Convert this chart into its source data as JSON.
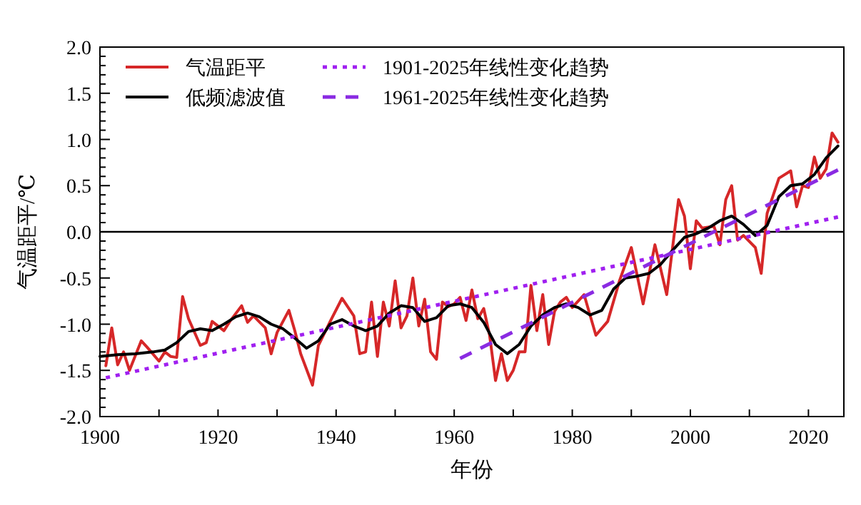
{
  "chart_data": {
    "type": "line",
    "xlabel": "年份",
    "ylabel": "气温距平/℃",
    "legend": "top left",
    "grid": false,
    "xlim": [
      1900,
      2026
    ],
    "ylim": [
      -2,
      2
    ],
    "xticks": [
      1900,
      {
        "value": 1910,
        "label": null
      },
      1920,
      {
        "value": 1930,
        "label": null
      },
      1940,
      {
        "value": 1950,
        "label": null
      },
      1960,
      {
        "value": 1970,
        "label": null
      },
      1980,
      {
        "value": 1990,
        "label": null
      },
      2000,
      {
        "value": 2010,
        "label": null
      },
      2020
    ],
    "yticks": [
      {
        "value": -2,
        "label": "-2.0"
      },
      {
        "value": -1.5,
        "label": "-1.5"
      },
      {
        "value": -1,
        "label": "-1.0"
      },
      {
        "value": -0.5,
        "label": "-0.5"
      },
      {
        "value": 0,
        "label": "0.0"
      },
      {
        "value": 0.5,
        "label": "0.5"
      },
      {
        "value": 1,
        "label": "1.0"
      },
      {
        "value": 1.5,
        "label": "1.5"
      },
      {
        "value": 2,
        "label": "2.0"
      }
    ],
    "ref_lines": [
      {
        "axis": "y",
        "value": 0,
        "color": "#000000",
        "line_style": "solid"
      }
    ],
    "series": [
      {
        "name": "气温距平",
        "type": "line",
        "line_style": "solid",
        "color": "#d62728",
        "x": [
          1901,
          1902,
          1903,
          1904,
          1905,
          1907,
          1908,
          1910,
          1911,
          1912,
          1913,
          1914,
          1915,
          1917,
          1918,
          1919,
          1921,
          1922,
          1924,
          1925,
          1926,
          1928,
          1929,
          1930,
          1932,
          1933,
          1934,
          1936,
          1937,
          1939,
          1941,
          1943,
          1944,
          1945,
          1946,
          1947,
          1948,
          1949,
          1950,
          1951,
          1952,
          1953,
          1954,
          1955,
          1956,
          1957,
          1958,
          1959,
          1960,
          1961,
          1962,
          1963,
          1964,
          1965,
          1966,
          1967,
          1968,
          1969,
          1970,
          1971,
          1972,
          1973,
          1974,
          1975,
          1976,
          1977,
          1978,
          1979,
          1980,
          1982,
          1984,
          1986,
          1988,
          1990,
          1992,
          1994,
          1996,
          1998,
          1999,
          2000,
          2001,
          2002,
          2004,
          2005,
          2006,
          2007,
          2008,
          2009,
          2011,
          2012,
          2013,
          2015,
          2017,
          2018,
          2019,
          2020,
          2021,
          2022,
          2023,
          2024,
          2025
        ],
        "values": [
          -1.45,
          -1.04,
          -1.44,
          -1.3,
          -1.5,
          -1.18,
          -1.25,
          -1.4,
          -1.3,
          -1.35,
          -1.36,
          -0.7,
          -0.94,
          -1.23,
          -1.2,
          -0.97,
          -1.07,
          -0.97,
          -0.8,
          -0.98,
          -0.91,
          -1.04,
          -1.32,
          -1.09,
          -0.85,
          -1.07,
          -1.32,
          -1.66,
          -1.23,
          -0.97,
          -0.72,
          -0.91,
          -1.32,
          -1.3,
          -0.76,
          -1.35,
          -0.76,
          -1.02,
          -0.53,
          -1.04,
          -0.91,
          -0.5,
          -1.02,
          -0.73,
          -1.3,
          -1.38,
          -0.76,
          -0.81,
          -0.78,
          -0.71,
          -0.96,
          -0.63,
          -0.94,
          -0.83,
          -1.12,
          -1.61,
          -1.32,
          -1.61,
          -1.5,
          -1.3,
          -1.3,
          -0.58,
          -1.07,
          -0.68,
          -1.22,
          -0.86,
          -0.76,
          -0.71,
          -0.82,
          -0.68,
          -1.12,
          -0.97,
          -0.53,
          -0.17,
          -0.78,
          -0.14,
          -0.68,
          0.35,
          0.17,
          -0.4,
          0.12,
          0.04,
          0.06,
          -0.14,
          0.35,
          0.5,
          -0.09,
          -0.04,
          -0.17,
          -0.45,
          0.2,
          0.58,
          0.66,
          0.27,
          0.5,
          0.48,
          0.81,
          0.58,
          0.68,
          1.07,
          0.97
        ]
      },
      {
        "name": "低频滤波值",
        "type": "line",
        "line_style": "solid",
        "color": "#000000",
        "x": [
          1900,
          1903,
          1906,
          1909,
          1911,
          1913,
          1915,
          1917,
          1919,
          1921,
          1923,
          1925,
          1927,
          1929,
          1931,
          1933,
          1935,
          1937,
          1939,
          1941,
          1943,
          1945,
          1947,
          1949,
          1951,
          1953,
          1955,
          1957,
          1959,
          1961,
          1963,
          1965,
          1967,
          1969,
          1971,
          1973,
          1975,
          1977,
          1979,
          1981,
          1983,
          1985,
          1987,
          1989,
          1991,
          1993,
          1995,
          1997,
          1999,
          2001,
          2003,
          2005,
          2007,
          2009,
          2011,
          2013,
          2015,
          2017,
          2019,
          2021,
          2023,
          2025
        ],
        "values": [
          -1.35,
          -1.33,
          -1.32,
          -1.3,
          -1.28,
          -1.2,
          -1.08,
          -1.05,
          -1.07,
          -1.0,
          -0.92,
          -0.88,
          -0.92,
          -1.0,
          -1.05,
          -1.15,
          -1.26,
          -1.18,
          -1.0,
          -0.95,
          -1.02,
          -1.07,
          -1.02,
          -0.88,
          -0.8,
          -0.82,
          -0.97,
          -0.93,
          -0.8,
          -0.78,
          -0.82,
          -0.98,
          -1.22,
          -1.32,
          -1.22,
          -1.02,
          -0.9,
          -0.82,
          -0.78,
          -0.82,
          -0.9,
          -0.85,
          -0.62,
          -0.5,
          -0.48,
          -0.45,
          -0.35,
          -0.2,
          -0.06,
          -0.02,
          0.04,
          0.12,
          0.17,
          0.08,
          -0.04,
          0.07,
          0.38,
          0.5,
          0.52,
          0.62,
          0.8,
          0.93
        ]
      },
      {
        "name": "1901-2025年线性变化趋势",
        "type": "line",
        "line_style": "dotted",
        "color": "#a020f0",
        "x": [
          1901,
          2025
        ],
        "values": [
          -1.58,
          0.16
        ]
      },
      {
        "name": "1961-2025年线性变化趋势",
        "type": "line",
        "line_style": "dashed",
        "color": "#8a2be2",
        "x": [
          1961,
          2025
        ],
        "values": [
          -1.37,
          0.67
        ]
      }
    ]
  }
}
